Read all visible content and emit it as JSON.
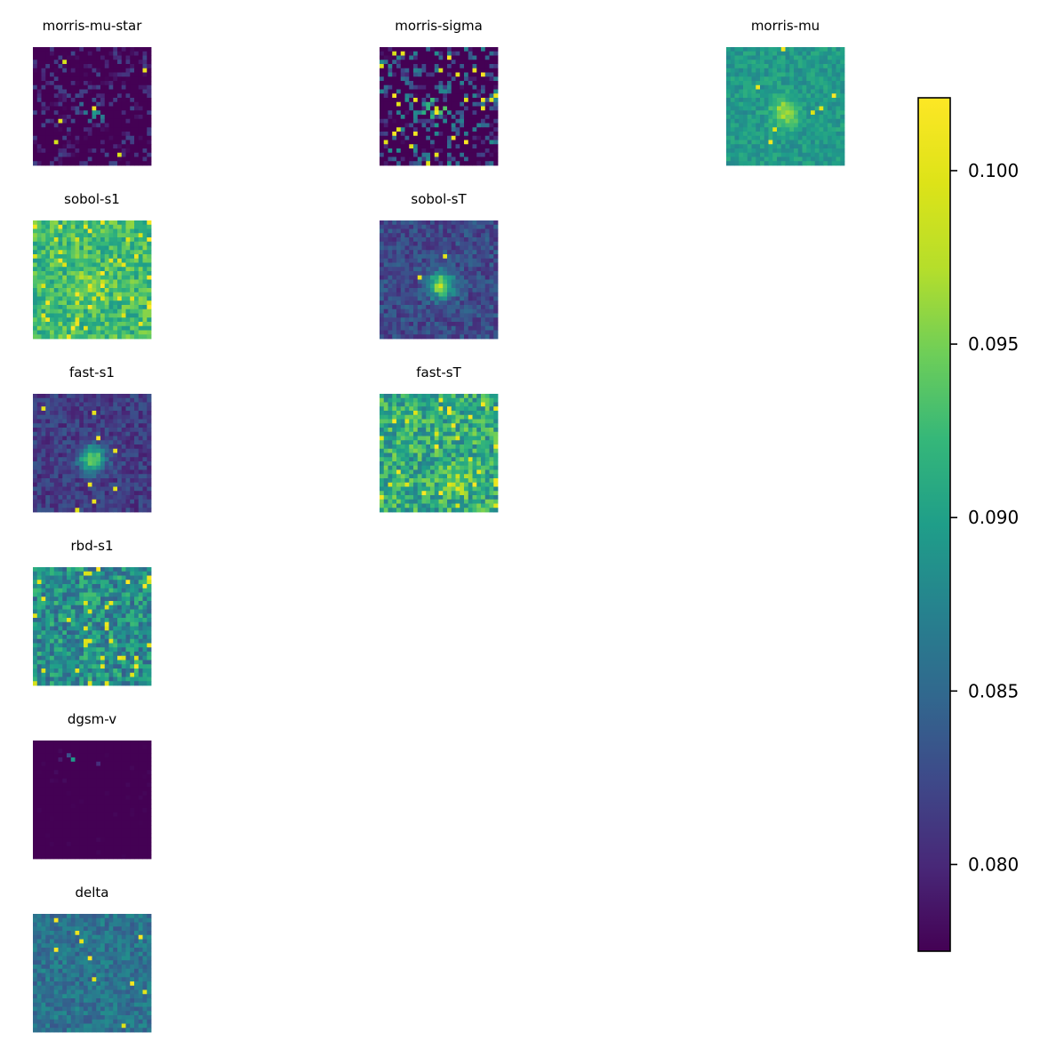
{
  "chart_data": {
    "type": "heatmap",
    "colormap": "viridis",
    "grid_size": [
      28,
      28
    ],
    "colorbar": {
      "range": [
        0.0775,
        0.1021
      ],
      "ticks": [
        0.08,
        0.085,
        0.09,
        0.095,
        0.1
      ],
      "tick_labels": [
        "0.080",
        "0.085",
        "0.090",
        "0.095",
        "0.100"
      ],
      "placement": "right"
    },
    "panels": [
      {
        "title": "morris-mu-star",
        "row": 0,
        "col": 0,
        "base": 0.0785,
        "spread": 0.004,
        "sparse": 0.55,
        "hot": 0.02,
        "blob": [
          0.5,
          0.55,
          0.01
        ],
        "seed": 11
      },
      {
        "title": "morris-sigma",
        "row": 0,
        "col": 1,
        "base": 0.0795,
        "spread": 0.009,
        "sparse": 0.45,
        "hot": 0.04,
        "blob": [
          0.48,
          0.52,
          0.012
        ],
        "seed": 23
      },
      {
        "title": "morris-mu",
        "row": 0,
        "col": 2,
        "base": 0.0895,
        "spread": 0.002,
        "sparse": 0,
        "hot": 0.01,
        "blob": [
          0.5,
          0.55,
          0.008
        ],
        "seed": 37
      },
      {
        "title": "sobol-s1",
        "row": 1,
        "col": 0,
        "base": 0.0925,
        "spread": 0.0035,
        "sparse": 0,
        "hot": 0.05,
        "blob": [
          0.5,
          0.55,
          0.005
        ],
        "seed": 41
      },
      {
        "title": "sobol-sT",
        "row": 1,
        "col": 1,
        "base": 0.0825,
        "spread": 0.0025,
        "sparse": 0,
        "hot": 0.01,
        "blob": [
          0.52,
          0.55,
          0.014
        ],
        "seed": 53
      },
      {
        "title": "fast-s1",
        "row": 2,
        "col": 0,
        "base": 0.0815,
        "spread": 0.0022,
        "sparse": 0,
        "hot": 0.01,
        "blob": [
          0.5,
          0.55,
          0.014
        ],
        "seed": 67
      },
      {
        "title": "fast-sT",
        "row": 2,
        "col": 1,
        "base": 0.091,
        "spread": 0.0045,
        "sparse": 0,
        "hot": 0.04,
        "blob": [
          0.65,
          0.75,
          0.006
        ],
        "seed": 79
      },
      {
        "title": "rbd-s1",
        "row": 3,
        "col": 0,
        "base": 0.0885,
        "spread": 0.0045,
        "sparse": 0,
        "hot": 0.04,
        "blob": [
          0.5,
          0.5,
          0.0
        ],
        "seed": 83
      },
      {
        "title": "dgsm-v",
        "row": 4,
        "col": 0,
        "base": 0.0776,
        "spread": 0.0003,
        "sparse": 0.93,
        "hot": 0.006,
        "blob": [
          0.4,
          0.2,
          0.018
        ],
        "seed": 97
      },
      {
        "title": "delta",
        "row": 5,
        "col": 0,
        "base": 0.086,
        "spread": 0.0025,
        "sparse": 0,
        "hot": 0.02,
        "blob": [
          0.5,
          0.5,
          0.0
        ],
        "seed": 101
      }
    ]
  }
}
